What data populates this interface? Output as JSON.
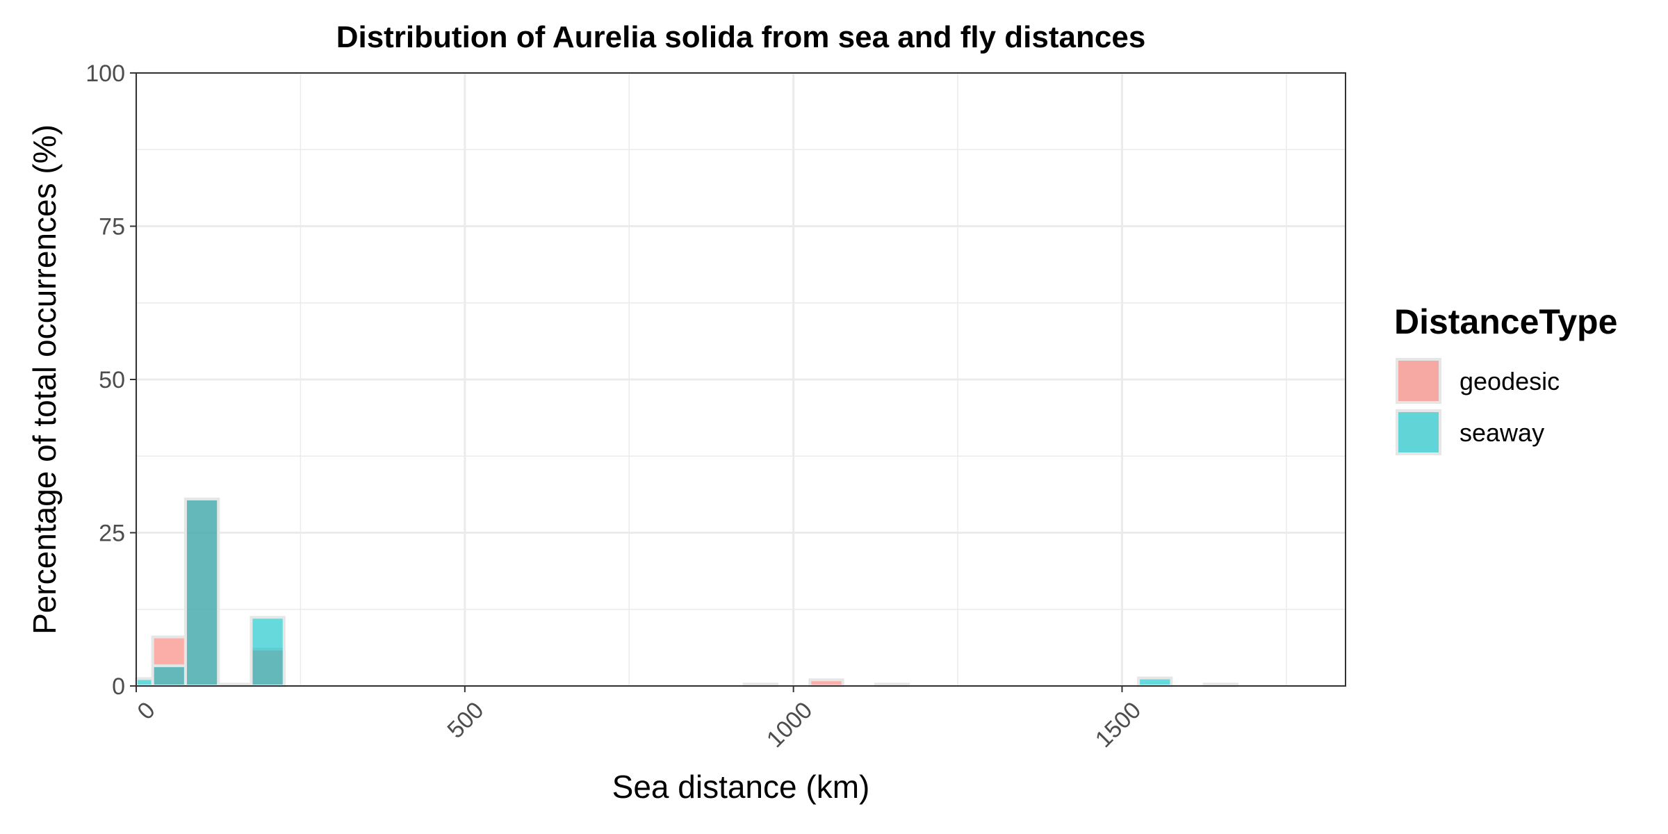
{
  "chart_data": {
    "type": "bar",
    "title": "Distribution of Aurelia solida from sea and fly distances",
    "xlabel": "Sea distance (km)",
    "ylabel": "Percentage of total occurrences (%)",
    "xlim": [
      0,
      1840
    ],
    "ylim": [
      0,
      100
    ],
    "x_ticks": [
      0,
      500,
      1000,
      1500
    ],
    "x_tick_labels": [
      "0",
      "500",
      "1000",
      "1500"
    ],
    "y_ticks": [
      0,
      25,
      50,
      75,
      100
    ],
    "y_tick_labels": [
      "0",
      "25",
      "50",
      "75",
      "100"
    ],
    "grid": true,
    "bin_width": 50,
    "legend": {
      "title": "DistanceType",
      "position": "right",
      "entries": [
        "geodesic",
        "seaway"
      ]
    },
    "series": [
      {
        "name": "geodesic",
        "color": "#F8766D",
        "bins": [
          {
            "x": 50,
            "value": 8.0
          },
          {
            "x": 100,
            "value": 30.5
          },
          {
            "x": 150,
            "value": 0.3
          },
          {
            "x": 200,
            "value": 6.0
          },
          {
            "x": 950,
            "value": 0.3
          },
          {
            "x": 1050,
            "value": 1.0
          },
          {
            "x": 1150,
            "value": 0.3
          },
          {
            "x": 1650,
            "value": 0.3
          }
        ]
      },
      {
        "name": "seaway",
        "color": "#00BFC4",
        "bins": [
          {
            "x": 0,
            "value": 1.2
          },
          {
            "x": 50,
            "value": 3.3
          },
          {
            "x": 100,
            "value": 30.5
          },
          {
            "x": 200,
            "value": 11.2
          },
          {
            "x": 1550,
            "value": 1.3
          }
        ]
      }
    ]
  }
}
